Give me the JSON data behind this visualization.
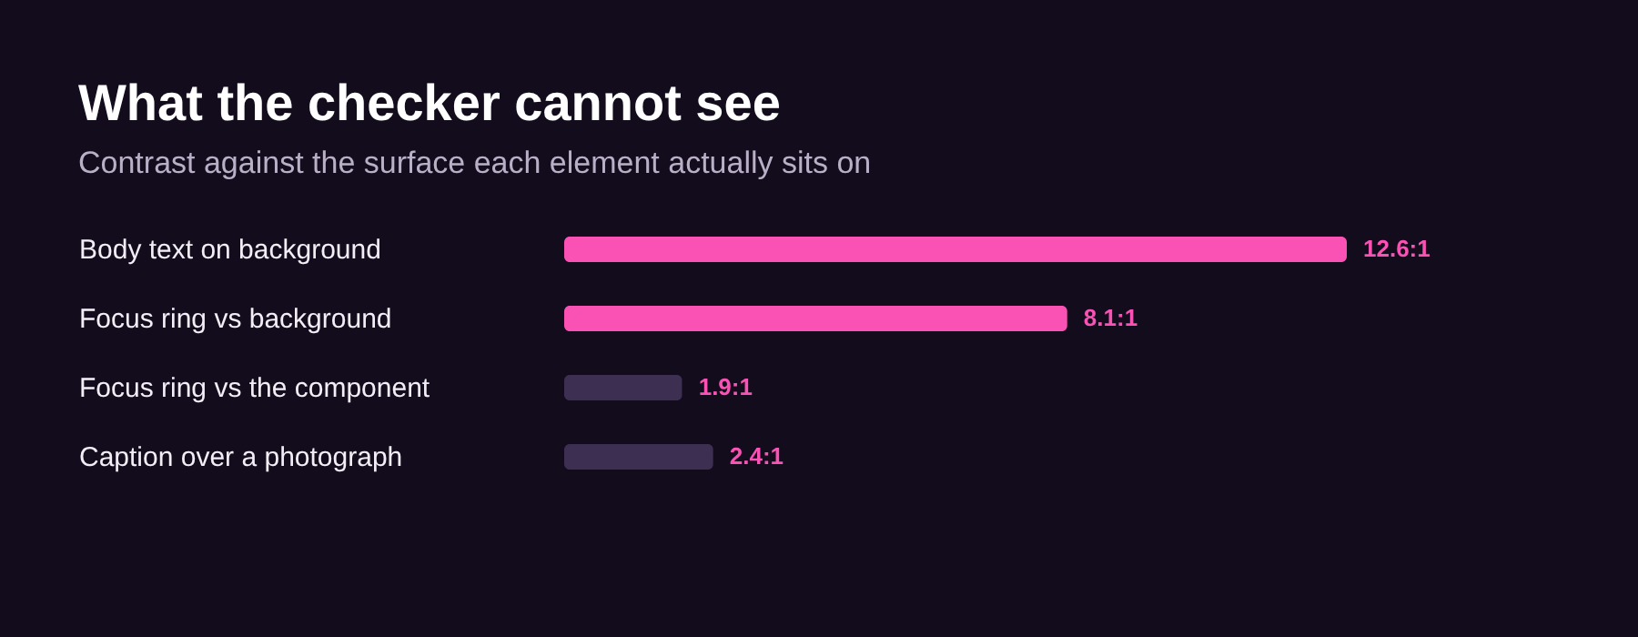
{
  "chart_data": {
    "type": "bar",
    "orientation": "horizontal",
    "title": "What the checker cannot see",
    "subtitle": "Contrast against the surface each element actually sits on",
    "categories": [
      "Body text on background",
      "Focus ring vs background",
      "Focus ring vs the component",
      "Caption over a photograph"
    ],
    "values": [
      12.6,
      8.1,
      1.9,
      2.4
    ],
    "colors": [
      "#f952b4",
      "#f952b4",
      "#3d2f52",
      "#3d2f52"
    ],
    "value_labels": [
      "12.6:1",
      "8.1:1",
      "1.9:1",
      "2.4:1"
    ],
    "tick_labels": "y"
  }
}
